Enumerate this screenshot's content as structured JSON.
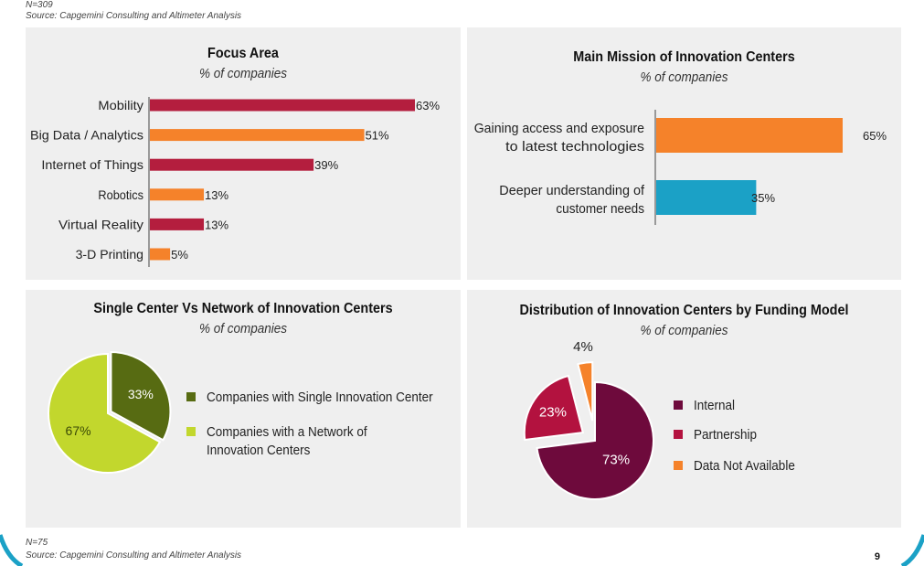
{
  "header_note": {
    "n": "N=309",
    "source": "Source: Capgemini Consulting and Altimeter Analysis"
  },
  "footer_note": {
    "n": "N=75",
    "source": "Source: Capgemini Consulting and Altimeter Analysis"
  },
  "page_number": "9",
  "colors": {
    "crimson": "#b41e3e",
    "orange": "#f5822a",
    "teal": "#1ba1c6",
    "olive": "#576b12",
    "lime": "#c2d72d",
    "maroon": "#6e0a3c",
    "magenta": "#b3123f",
    "accent_arc": "#1ba1c6"
  },
  "chart_data": [
    {
      "type": "bar",
      "orientation": "horizontal",
      "title": "Focus Area",
      "subtitle": "% of companies",
      "categories": [
        "Mobility",
        "Big Data / Analytics",
        "Internet of Things",
        "Robotics",
        "Virtual Reality",
        "3-D Printing"
      ],
      "values": [
        63,
        51,
        39,
        13,
        13,
        5
      ],
      "labels": [
        "63%",
        "51%",
        "39%",
        "13%",
        "13%",
        "5%"
      ],
      "bar_colors": [
        "#b41e3e",
        "#f5822a",
        "#b41e3e",
        "#f5822a",
        "#b41e3e",
        "#f5822a"
      ],
      "xlim": [
        0,
        63
      ]
    },
    {
      "type": "bar",
      "orientation": "horizontal",
      "title": "Main Mission of Innovation Centers",
      "subtitle": "% of companies",
      "categories": [
        [
          "Gaining access and exposure",
          "to latest technologies"
        ],
        [
          "Deeper understanding of",
          "customer needs"
        ]
      ],
      "values": [
        65,
        35
      ],
      "labels": [
        "65%",
        "35%"
      ],
      "bar_colors": [
        "#f5822a",
        "#1ba1c6"
      ],
      "xlim": [
        0,
        65
      ]
    },
    {
      "type": "pie",
      "title": "Single Center Vs Network of Innovation Centers",
      "subtitle": "% of companies",
      "slices": [
        {
          "label": "Companies with Single Innovation Center",
          "value": 33,
          "display": "33%",
          "color": "#576b12"
        },
        {
          "label": "Companies with a Network of Innovation Centers",
          "value": 67,
          "display": "67%",
          "color": "#c2d72d"
        }
      ],
      "legend_placement": "right"
    },
    {
      "type": "pie",
      "title": "Distribution of Innovation Centers by Funding Model",
      "subtitle": "% of companies",
      "slices": [
        {
          "label": "Internal",
          "value": 73,
          "display": "73%",
          "color": "#6e0a3c"
        },
        {
          "label": "Partnership",
          "value": 23,
          "display": "23%",
          "color": "#b3123f"
        },
        {
          "label": "Data Not Available",
          "value": 4,
          "display": "4%",
          "color": "#f5822a"
        }
      ],
      "legend_placement": "right"
    }
  ]
}
